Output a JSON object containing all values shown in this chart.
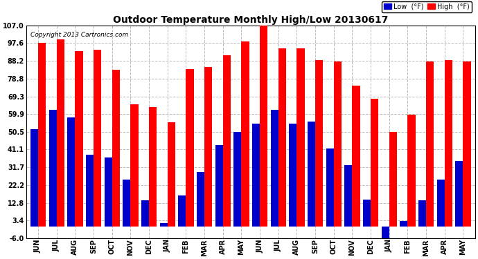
{
  "title": "Outdoor Temperature Monthly High/Low 20130617",
  "copyright": "Copyright 2013 Cartronics.com",
  "legend_low": "Low  (°F)",
  "legend_high": "High  (°F)",
  "months": [
    "JUN",
    "JUL",
    "AUG",
    "SEP",
    "OCT",
    "NOV",
    "DEC",
    "JAN",
    "FEB",
    "MAR",
    "APR",
    "MAY",
    "JUN",
    "JUL",
    "AUG",
    "SEP",
    "OCT",
    "NOV",
    "DEC",
    "JAN",
    "FEB",
    "MAR",
    "APR",
    "MAY"
  ],
  "high_values": [
    97.6,
    99.5,
    93.5,
    94.0,
    83.5,
    65.0,
    63.5,
    55.5,
    84.0,
    85.0,
    91.0,
    98.5,
    107.0,
    95.0,
    95.0,
    88.5,
    88.0,
    75.0,
    68.0,
    50.5,
    59.5,
    88.0,
    88.5,
    88.0
  ],
  "low_values": [
    52.0,
    62.0,
    58.0,
    38.5,
    37.0,
    25.0,
    14.0,
    2.0,
    16.5,
    29.0,
    43.5,
    50.5,
    55.0,
    62.0,
    55.0,
    56.0,
    41.5,
    33.0,
    14.5,
    -8.5,
    3.0,
    14.0,
    25.0,
    35.0
  ],
  "high_color": "#ff0000",
  "low_color": "#0000cc",
  "background_color": "#ffffff",
  "grid_color": "#bbbbbb",
  "yticks": [
    107.0,
    97.6,
    88.2,
    78.8,
    69.3,
    59.9,
    50.5,
    41.1,
    31.7,
    22.2,
    12.8,
    3.4,
    -6.0
  ],
  "ylim": [
    -6.0,
    107.0
  ],
  "bar_width": 0.42
}
